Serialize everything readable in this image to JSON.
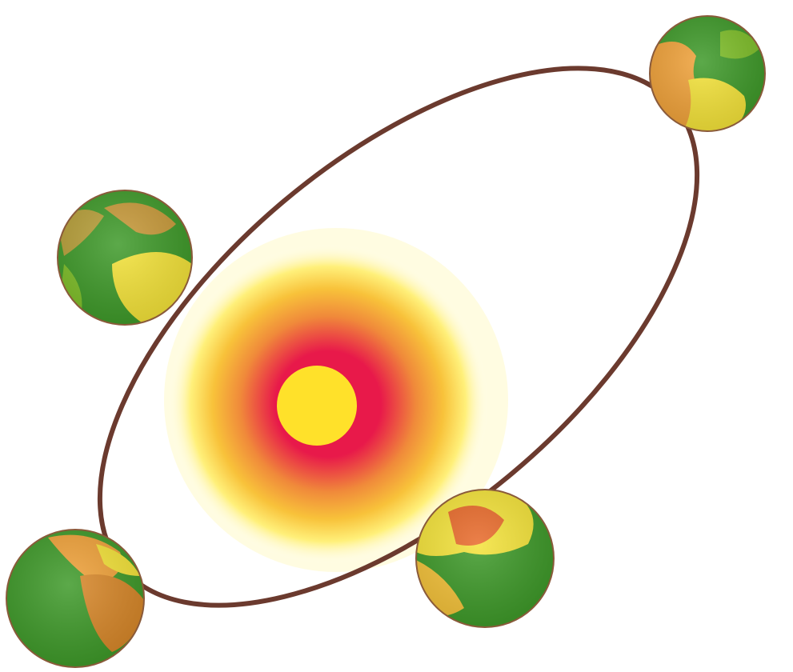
{
  "diagram": {
    "orbit_color": "#6b3a2e",
    "sun_colors": {
      "core": "#ffe12a",
      "inner": "#e8194a",
      "middle": "#f08a3a",
      "outer": "#fff07a",
      "halo": "#fff9c8"
    },
    "earth_colors": {
      "ocean": "#3f9a2a",
      "land_warm": "#f0a23a",
      "land_hot": "#e86a2a",
      "land_yellow": "#f4e33a",
      "outline": "#8a5a3a"
    },
    "earths": [
      {
        "name": "earth-top-right"
      },
      {
        "name": "earth-left"
      },
      {
        "name": "earth-bottom-left"
      },
      {
        "name": "earth-bottom-right"
      }
    ]
  }
}
